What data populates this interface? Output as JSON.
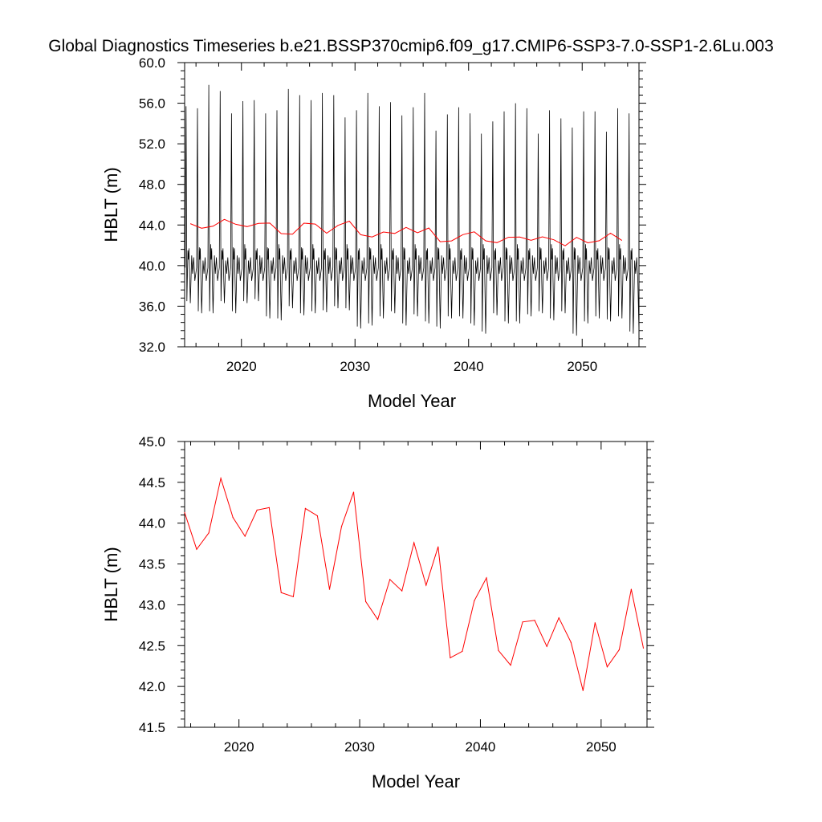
{
  "title": "Global Diagnostics Timeseries b.e21.BSSP370cmip6.f09_g17.CMIP6-SSP3-7.0-SSP1-2.6Lu.003",
  "colors": {
    "monthly": "#000000",
    "annual": "#ff0000",
    "axis": "#000000"
  },
  "chart_data": [
    {
      "type": "line",
      "xlabel": "Model Year",
      "ylabel": "HBLT (m)",
      "xlim": [
        2015,
        2055
      ],
      "ylim": [
        32,
        60
      ],
      "xticks": [
        2020,
        2030,
        2040,
        2050
      ],
      "xtick_labels": [
        "2020",
        "2030",
        "2040",
        "2050"
      ],
      "yticks": [
        32,
        36,
        40,
        44,
        48,
        52,
        56,
        60
      ],
      "ytick_labels": [
        "32.0",
        "36.0",
        "40.0",
        "44.0",
        "48.0",
        "52.0",
        "56.0",
        "60.0"
      ],
      "monthly_peaks": [
        55.7,
        55.5,
        57.8,
        57.2,
        55.0,
        56.2,
        56.3,
        55.0,
        55.3,
        57.4,
        56.8,
        56.3,
        57.0,
        56.8,
        54.6,
        55.3,
        57.0,
        55.7,
        56.1,
        54.8,
        55.6,
        57.0,
        53.3,
        54.9,
        55.6,
        55.0,
        53.0,
        54.2,
        55.2,
        56.0,
        55.5,
        53.0,
        55.3,
        54.5,
        53.6,
        55.2,
        55.2,
        53.2,
        55.5,
        55.0
      ],
      "monthly_troughs": [
        36.5,
        35.5,
        35.5,
        36.5,
        35.5,
        36.5,
        36.7,
        35.0,
        34.8,
        36.0,
        35.3,
        35.5,
        35.6,
        36.0,
        35.8,
        34.0,
        34.3,
        35.0,
        35.5,
        34.3,
        35.2,
        34.5,
        34.0,
        35.0,
        35.0,
        34.3,
        33.5,
        35.3,
        34.5,
        34.5,
        35.2,
        35.5,
        34.8,
        35.5,
        33.3,
        34.5,
        35.0,
        34.7,
        35.0,
        33.5
      ],
      "series": [
        {
          "x": [
            2015.5,
            2016.5,
            2017.5,
            2018.5,
            2019.5,
            2020.5,
            2021.5,
            2022.5,
            2023.5,
            2024.5,
            2025.5,
            2026.5,
            2027.5,
            2028.5,
            2029.5,
            2030.5,
            2031.5,
            2032.5,
            2033.5,
            2034.5,
            2035.5,
            2036.5,
            2037.5,
            2038.5,
            2039.5,
            2040.5,
            2041.5,
            2042.5,
            2043.5,
            2044.5,
            2045.5,
            2046.5,
            2047.5,
            2048.5,
            2049.5,
            2050.5,
            2051.5,
            2052.5,
            2053.5
          ],
          "values": [
            44.13,
            43.68,
            43.88,
            44.55,
            44.07,
            43.84,
            44.16,
            44.19,
            43.15,
            43.1,
            44.18,
            44.09,
            43.19,
            43.96,
            44.38,
            43.04,
            42.82,
            43.31,
            43.17,
            43.76,
            43.24,
            43.71,
            42.35,
            42.43,
            43.05,
            43.33,
            42.44,
            42.26,
            42.79,
            42.81,
            42.49,
            42.84,
            42.54,
            41.95,
            42.78,
            42.24,
            42.45,
            43.19,
            42.47
          ]
        }
      ]
    },
    {
      "type": "line",
      "xlabel": "Model Year",
      "ylabel": "HBLT (m)",
      "xlim": [
        2015.5,
        2053.8
      ],
      "ylim": [
        41.5,
        45.0
      ],
      "xticks": [
        2020,
        2030,
        2040,
        2050
      ],
      "xtick_labels": [
        "2020",
        "2030",
        "2040",
        "2050"
      ],
      "yticks": [
        41.5,
        42.0,
        42.5,
        43.0,
        43.5,
        44.0,
        44.5,
        45.0
      ],
      "ytick_labels": [
        "41.5",
        "42.0",
        "42.5",
        "43.0",
        "43.5",
        "44.0",
        "44.5",
        "45.0"
      ],
      "series": [
        {
          "x": [
            2015.5,
            2016.5,
            2017.5,
            2018.5,
            2019.5,
            2020.5,
            2021.5,
            2022.5,
            2023.5,
            2024.5,
            2025.5,
            2026.5,
            2027.5,
            2028.5,
            2029.5,
            2030.5,
            2031.5,
            2032.5,
            2033.5,
            2034.5,
            2035.5,
            2036.5,
            2037.5,
            2038.5,
            2039.5,
            2040.5,
            2041.5,
            2042.5,
            2043.5,
            2044.5,
            2045.5,
            2046.5,
            2047.5,
            2048.5,
            2049.5,
            2050.5,
            2051.5,
            2052.5,
            2053.5
          ],
          "values": [
            44.13,
            43.68,
            43.88,
            44.55,
            44.07,
            43.84,
            44.16,
            44.19,
            43.15,
            43.1,
            44.18,
            44.09,
            43.19,
            43.96,
            44.38,
            43.04,
            42.82,
            43.31,
            43.17,
            43.76,
            43.24,
            43.71,
            42.35,
            42.43,
            43.05,
            43.33,
            42.44,
            42.26,
            42.79,
            42.81,
            42.49,
            42.84,
            42.54,
            41.95,
            42.78,
            42.24,
            42.45,
            43.19,
            42.47
          ]
        }
      ]
    }
  ]
}
